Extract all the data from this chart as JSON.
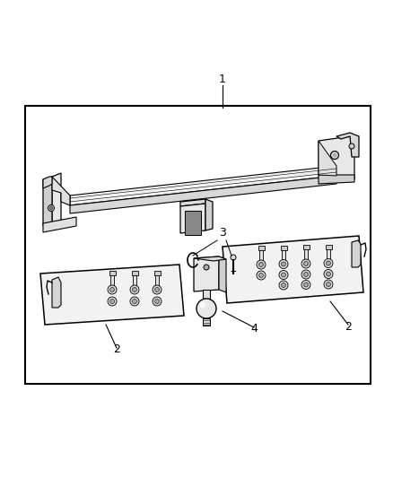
{
  "bg_color": "#ffffff",
  "line_color": "#000000",
  "fig_width": 4.38,
  "fig_height": 5.33,
  "dpi": 100,
  "label_1": "1",
  "label_2": "2",
  "label_3": "3",
  "label_4": "4",
  "label_fontsize": 9
}
